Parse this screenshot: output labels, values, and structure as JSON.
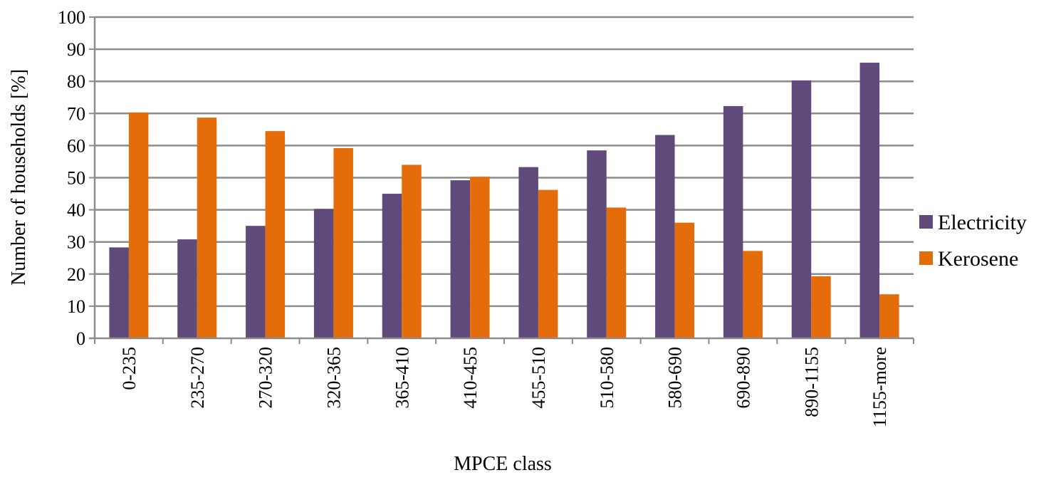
{
  "chart_data": {
    "type": "bar",
    "title": "",
    "xlabel": "MPCE class",
    "ylabel": "Number of households [%]",
    "ylim": [
      0,
      100
    ],
    "yticks": [
      0,
      10,
      20,
      30,
      40,
      50,
      60,
      70,
      80,
      90,
      100
    ],
    "grid": true,
    "legend_position": "right",
    "categories": [
      "0-235",
      "235-270",
      "270-320",
      "320-365",
      "365-410",
      "410-455",
      "455-510",
      "510-580",
      "580-690",
      "690-890",
      "890-1155",
      "1155-more"
    ],
    "series": [
      {
        "name": "Electricity",
        "color": "#604A7B",
        "values": [
          28.3,
          30.8,
          35.0,
          40.3,
          45.0,
          49.2,
          53.3,
          58.5,
          63.3,
          72.3,
          80.3,
          85.8
        ]
      },
      {
        "name": "Kerosene",
        "color": "#E46C0A",
        "values": [
          70.3,
          68.7,
          64.5,
          59.2,
          54.0,
          50.3,
          46.2,
          40.7,
          36.0,
          27.2,
          19.3,
          13.7
        ]
      }
    ]
  }
}
